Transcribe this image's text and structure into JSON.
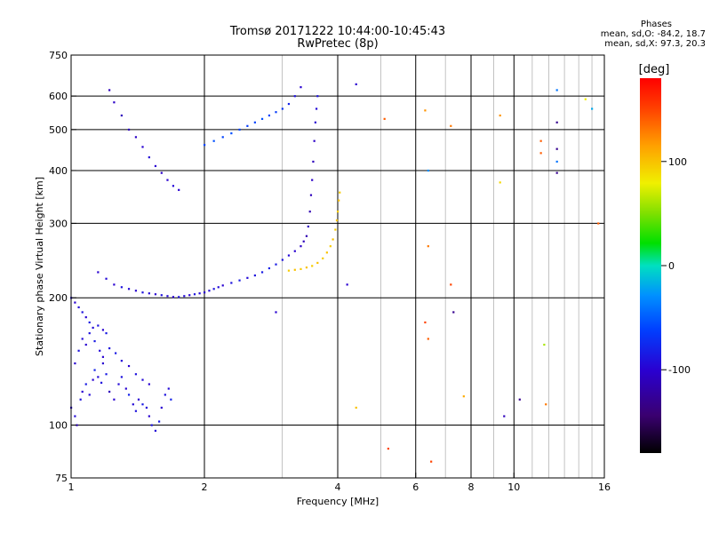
{
  "title_line1": "Tromsø 20171222 10:44:00-10:45:43",
  "title_line2": "RwPretec (8p)",
  "phases": {
    "heading": "Phases",
    "line_o": "mean, sd,O: -84.2, 18.7",
    "line_x": "mean, sd,X:  97.3, 20.3"
  },
  "colorbar": {
    "unit": "[deg]",
    "ticks": [
      {
        "value": 100,
        "label": "100"
      },
      {
        "value": 0,
        "label": "0"
      },
      {
        "value": -100,
        "label": "-100"
      }
    ],
    "range": [
      -180,
      180
    ]
  },
  "chart_data": {
    "type": "scatter",
    "xlabel": "Frequency [MHz]",
    "ylabel": "Stationary phase Virtual Height [km]",
    "xscale": "log",
    "yscale": "log",
    "xlim": [
      1,
      16
    ],
    "ylim": [
      75,
      750
    ],
    "x_ticks": [
      {
        "value": 1,
        "label": "1"
      },
      {
        "value": 2,
        "label": "2"
      },
      {
        "value": 4,
        "label": "4"
      },
      {
        "value": 6,
        "label": "6"
      },
      {
        "value": 8,
        "label": "8"
      },
      {
        "value": 10,
        "label": "10"
      },
      {
        "value": 16,
        "label": "16"
      }
    ],
    "x_gridlines": [
      1,
      2,
      3,
      4,
      5,
      6,
      7,
      8,
      9,
      10,
      11,
      12,
      13,
      14,
      15,
      16
    ],
    "x_major_lines": [
      2,
      4,
      6,
      8,
      10
    ],
    "y_ticks": [
      {
        "value": 75,
        "label": "75"
      },
      {
        "value": 100,
        "label": "100"
      },
      {
        "value": 200,
        "label": "200"
      },
      {
        "value": 300,
        "label": "300"
      },
      {
        "value": 400,
        "label": "400"
      },
      {
        "value": 500,
        "label": "500"
      },
      {
        "value": 600,
        "label": "600"
      },
      {
        "value": 750,
        "label": "750"
      }
    ],
    "y_gridlines": [
      100,
      200,
      300,
      400,
      500,
      600
    ],
    "grid": true,
    "color_variable": "phase (deg)",
    "series": [
      {
        "points": [
          [
            1.0,
            110,
            -100
          ],
          [
            1.02,
            105,
            -95
          ],
          [
            1.03,
            100,
            -110
          ],
          [
            1.05,
            115,
            -90
          ],
          [
            1.06,
            120,
            -100
          ],
          [
            1.08,
            125,
            -85
          ],
          [
            1.1,
            118,
            -95
          ],
          [
            1.12,
            128,
            -100
          ],
          [
            1.13,
            135,
            -80
          ],
          [
            1.15,
            130,
            -95
          ],
          [
            1.17,
            126,
            -90
          ],
          [
            1.18,
            140,
            -100
          ],
          [
            1.2,
            132,
            -85
          ],
          [
            1.22,
            120,
            -110
          ],
          [
            1.25,
            115,
            -100
          ],
          [
            1.28,
            125,
            -95
          ],
          [
            1.3,
            130,
            -90
          ],
          [
            1.33,
            122,
            -100
          ],
          [
            1.35,
            118,
            -80
          ],
          [
            1.38,
            112,
            -95
          ],
          [
            1.4,
            108,
            -90
          ],
          [
            1.42,
            115,
            -100
          ],
          [
            1.45,
            112,
            -85
          ],
          [
            1.48,
            110,
            -95
          ],
          [
            1.5,
            105,
            -100
          ],
          [
            1.52,
            100,
            -90
          ],
          [
            1.55,
            97,
            -95
          ],
          [
            1.58,
            102,
            -85
          ],
          [
            1.6,
            110,
            -100
          ],
          [
            1.63,
            118,
            -90
          ],
          [
            1.66,
            122,
            -95
          ],
          [
            1.68,
            115,
            -80
          ],
          [
            1.02,
            140,
            -100
          ],
          [
            1.04,
            150,
            -90
          ],
          [
            1.06,
            160,
            -95
          ],
          [
            1.08,
            155,
            -100
          ],
          [
            1.1,
            165,
            -90
          ],
          [
            1.13,
            158,
            -85
          ],
          [
            1.16,
            150,
            -95
          ],
          [
            1.18,
            145,
            -100
          ],
          [
            1.22,
            152,
            -90
          ],
          [
            1.26,
            148,
            -85
          ],
          [
            1.3,
            142,
            -95
          ],
          [
            1.35,
            138,
            -100
          ],
          [
            1.4,
            132,
            -90
          ],
          [
            1.45,
            128,
            -95
          ],
          [
            1.5,
            125,
            -100
          ],
          [
            1.0,
            200,
            -90
          ],
          [
            1.02,
            195,
            -100
          ],
          [
            1.04,
            190,
            -95
          ],
          [
            1.06,
            185,
            -90
          ],
          [
            1.08,
            180,
            -100
          ],
          [
            1.1,
            175,
            -85
          ],
          [
            1.12,
            170,
            -95
          ],
          [
            1.15,
            172,
            -90
          ],
          [
            1.18,
            168,
            -100
          ],
          [
            1.2,
            165,
            -85
          ]
        ]
      },
      {
        "points": [
          [
            1.15,
            230,
            -100
          ],
          [
            1.2,
            222,
            -95
          ],
          [
            1.25,
            215,
            -100
          ],
          [
            1.3,
            212,
            -90
          ],
          [
            1.35,
            210,
            -95
          ],
          [
            1.4,
            208,
            -100
          ],
          [
            1.45,
            206,
            -90
          ],
          [
            1.5,
            205,
            -95
          ],
          [
            1.55,
            204,
            -100
          ],
          [
            1.6,
            203,
            -90
          ],
          [
            1.65,
            202,
            -95
          ],
          [
            1.7,
            201,
            -100
          ],
          [
            1.75,
            201,
            -90
          ],
          [
            1.8,
            202,
            -95
          ],
          [
            1.85,
            203,
            -100
          ],
          [
            1.9,
            204,
            -90
          ],
          [
            1.95,
            205,
            -95
          ],
          [
            2.0,
            206,
            -100
          ],
          [
            2.05,
            208,
            -95
          ],
          [
            2.1,
            210,
            -90
          ],
          [
            2.15,
            212,
            -95
          ],
          [
            2.2,
            214,
            -100
          ],
          [
            2.3,
            217,
            -90
          ],
          [
            2.4,
            220,
            -85
          ],
          [
            2.5,
            223,
            -95
          ],
          [
            2.6,
            226,
            -90
          ],
          [
            2.7,
            230,
            -85
          ],
          [
            2.8,
            235,
            -80
          ],
          [
            2.9,
            240,
            -85
          ],
          [
            3.0,
            246,
            -90
          ],
          [
            3.1,
            252,
            -95
          ],
          [
            3.2,
            258,
            -100
          ],
          [
            3.3,
            265,
            -105
          ],
          [
            3.35,
            272,
            -110
          ],
          [
            3.4,
            280,
            -115
          ],
          [
            3.43,
            295,
            -110
          ],
          [
            3.46,
            320,
            -115
          ],
          [
            3.48,
            350,
            -110
          ],
          [
            3.5,
            380,
            -105
          ],
          [
            3.52,
            420,
            -110
          ],
          [
            3.54,
            470,
            -105
          ],
          [
            3.56,
            520,
            -100
          ],
          [
            3.58,
            560,
            -95
          ],
          [
            3.6,
            600,
            -90
          ]
        ]
      },
      {
        "points": [
          [
            3.1,
            232,
            95
          ],
          [
            3.2,
            233,
            100
          ],
          [
            3.3,
            234,
            95
          ],
          [
            3.4,
            236,
            100
          ],
          [
            3.5,
            238,
            95
          ],
          [
            3.6,
            242,
            100
          ],
          [
            3.7,
            248,
            95
          ],
          [
            3.78,
            256,
            100
          ],
          [
            3.85,
            265,
            95
          ],
          [
            3.9,
            275,
            100
          ],
          [
            3.95,
            290,
            95
          ],
          [
            3.98,
            305,
            100
          ],
          [
            4.0,
            320,
            95
          ],
          [
            4.02,
            340,
            100
          ],
          [
            4.04,
            355,
            95
          ]
        ]
      },
      {
        "points": [
          [
            1.35,
            500,
            -110
          ],
          [
            1.4,
            480,
            -105
          ],
          [
            1.45,
            455,
            -100
          ],
          [
            1.5,
            430,
            -95
          ],
          [
            1.55,
            410,
            -100
          ],
          [
            1.6,
            395,
            -105
          ],
          [
            1.65,
            380,
            -100
          ],
          [
            1.7,
            368,
            -95
          ],
          [
            1.75,
            360,
            -100
          ],
          [
            1.3,
            540,
            -110
          ],
          [
            1.25,
            580,
            -105
          ],
          [
            1.22,
            620,
            -110
          ],
          [
            2.0,
            460,
            -60
          ],
          [
            2.1,
            470,
            -55
          ],
          [
            2.2,
            480,
            -60
          ],
          [
            2.3,
            490,
            -55
          ],
          [
            2.4,
            500,
            -60
          ],
          [
            2.5,
            510,
            -65
          ],
          [
            2.6,
            520,
            -60
          ],
          [
            2.7,
            530,
            -55
          ],
          [
            2.8,
            540,
            -60
          ],
          [
            2.9,
            550,
            -65
          ],
          [
            3.0,
            560,
            -70
          ],
          [
            3.1,
            575,
            -80
          ],
          [
            3.2,
            600,
            -90
          ],
          [
            3.3,
            630,
            -100
          ]
        ]
      },
      {
        "points": [
          [
            2.9,
            185,
            -100
          ],
          [
            4.2,
            215,
            -100
          ],
          [
            4.4,
            640,
            -100
          ],
          [
            4.4,
            110,
            100
          ],
          [
            5.1,
            530,
            140
          ],
          [
            5.2,
            88,
            150
          ],
          [
            6.3,
            555,
            120
          ],
          [
            6.4,
            265,
            130
          ],
          [
            6.3,
            175,
            150
          ],
          [
            6.4,
            160,
            140
          ],
          [
            6.4,
            400,
            -30
          ],
          [
            6.5,
            82,
            150
          ],
          [
            7.2,
            510,
            130
          ],
          [
            7.2,
            215,
            150
          ],
          [
            7.3,
            185,
            -130
          ],
          [
            7.7,
            117,
            110
          ],
          [
            9.3,
            540,
            120
          ],
          [
            9.3,
            375,
            90
          ],
          [
            9.5,
            105,
            -110
          ],
          [
            10.3,
            115,
            -130
          ],
          [
            11.5,
            470,
            140
          ],
          [
            11.5,
            440,
            140
          ],
          [
            11.7,
            155,
            60
          ],
          [
            11.8,
            112,
            130
          ],
          [
            12.5,
            620,
            -40
          ],
          [
            12.5,
            520,
            -130
          ],
          [
            12.5,
            450,
            -130
          ],
          [
            12.5,
            420,
            -40
          ],
          [
            12.5,
            395,
            -130
          ],
          [
            14.5,
            590,
            80
          ],
          [
            15.0,
            560,
            -20
          ],
          [
            15.5,
            300,
            140
          ]
        ]
      }
    ]
  }
}
